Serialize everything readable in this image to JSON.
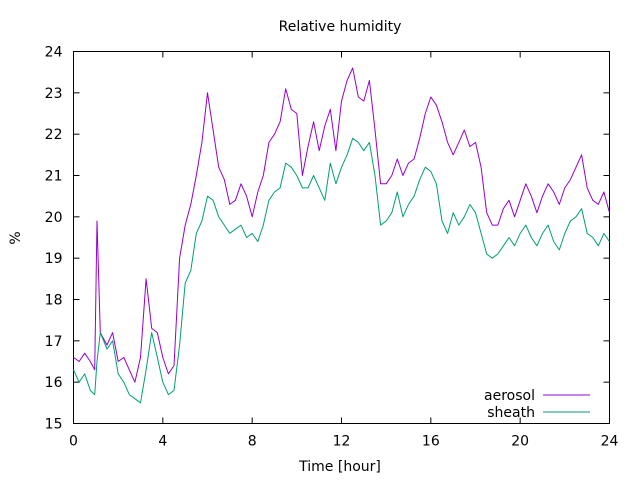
{
  "chart_data": {
    "type": "line",
    "title": "Relative humidity",
    "xlabel": "Time [hour]",
    "ylabel": "%",
    "xlim": [
      0,
      24
    ],
    "ylim": [
      15,
      24
    ],
    "xticks": [
      0,
      4,
      8,
      12,
      16,
      20,
      24
    ],
    "yticks": [
      15,
      16,
      17,
      18,
      19,
      20,
      21,
      22,
      23,
      24
    ],
    "grid": false,
    "legend_position": "bottom-right",
    "series": [
      {
        "name": "aerosol",
        "color": "#9400d3",
        "x": [
          0.0,
          0.25,
          0.5,
          0.75,
          0.95,
          1.05,
          1.2,
          1.5,
          1.75,
          2.0,
          2.25,
          2.5,
          2.75,
          3.0,
          3.25,
          3.5,
          3.75,
          4.0,
          4.25,
          4.5,
          4.75,
          5.0,
          5.25,
          5.5,
          5.75,
          6.0,
          6.25,
          6.5,
          6.75,
          7.0,
          7.25,
          7.5,
          7.75,
          8.0,
          8.25,
          8.5,
          8.75,
          9.0,
          9.25,
          9.5,
          9.75,
          10.0,
          10.25,
          10.5,
          10.75,
          11.0,
          11.25,
          11.5,
          11.75,
          12.0,
          12.25,
          12.5,
          12.75,
          13.0,
          13.25,
          13.5,
          13.75,
          14.0,
          14.25,
          14.5,
          14.75,
          15.0,
          15.25,
          15.5,
          15.75,
          16.0,
          16.25,
          16.5,
          16.75,
          17.0,
          17.25,
          17.5,
          17.75,
          18.0,
          18.25,
          18.5,
          18.75,
          19.0,
          19.25,
          19.5,
          19.75,
          20.0,
          20.25,
          20.5,
          20.75,
          21.0,
          21.25,
          21.5,
          21.75,
          22.0,
          22.25,
          22.5,
          22.75,
          23.0,
          23.25,
          23.5,
          23.75,
          24.0
        ],
        "values": [
          16.6,
          16.5,
          16.7,
          16.5,
          16.3,
          19.9,
          17.2,
          16.9,
          17.2,
          16.5,
          16.6,
          16.3,
          16.0,
          16.6,
          18.5,
          17.3,
          17.2,
          16.6,
          16.2,
          16.4,
          19.0,
          19.8,
          20.3,
          21.0,
          21.8,
          23.0,
          22.1,
          21.2,
          20.9,
          20.3,
          20.4,
          20.8,
          20.5,
          20.0,
          20.6,
          21.0,
          21.8,
          22.0,
          22.3,
          23.1,
          22.6,
          22.5,
          21.0,
          21.7,
          22.3,
          21.6,
          22.2,
          22.6,
          21.6,
          22.8,
          23.3,
          23.6,
          22.9,
          22.8,
          23.3,
          22.1,
          20.8,
          20.8,
          21.0,
          21.4,
          21.0,
          21.3,
          21.4,
          21.9,
          22.5,
          22.9,
          22.7,
          22.3,
          21.8,
          21.5,
          21.8,
          22.1,
          21.7,
          21.8,
          21.2,
          20.1,
          19.8,
          19.8,
          20.2,
          20.4,
          20.0,
          20.4,
          20.8,
          20.5,
          20.1,
          20.5,
          20.8,
          20.6,
          20.3,
          20.7,
          20.9,
          21.2,
          21.5,
          20.7,
          20.4,
          20.3,
          20.6,
          20.1
        ]
      },
      {
        "name": "sheath",
        "color": "#009e73",
        "x": [
          0.0,
          0.25,
          0.5,
          0.75,
          0.95,
          1.05,
          1.2,
          1.5,
          1.75,
          2.0,
          2.25,
          2.5,
          2.75,
          3.0,
          3.25,
          3.5,
          3.75,
          4.0,
          4.25,
          4.5,
          4.75,
          5.0,
          5.25,
          5.5,
          5.75,
          6.0,
          6.25,
          6.5,
          6.75,
          7.0,
          7.25,
          7.5,
          7.75,
          8.0,
          8.25,
          8.5,
          8.75,
          9.0,
          9.25,
          9.5,
          9.75,
          10.0,
          10.25,
          10.5,
          10.75,
          11.0,
          11.25,
          11.5,
          11.75,
          12.0,
          12.25,
          12.5,
          12.75,
          13.0,
          13.25,
          13.5,
          13.75,
          14.0,
          14.25,
          14.5,
          14.75,
          15.0,
          15.25,
          15.5,
          15.75,
          16.0,
          16.25,
          16.5,
          16.75,
          17.0,
          17.25,
          17.5,
          17.75,
          18.0,
          18.25,
          18.5,
          18.75,
          19.0,
          19.25,
          19.5,
          19.75,
          20.0,
          20.25,
          20.5,
          20.75,
          21.0,
          21.25,
          21.5,
          21.75,
          22.0,
          22.25,
          22.5,
          22.75,
          23.0,
          23.25,
          23.5,
          23.75,
          24.0
        ],
        "values": [
          16.3,
          16.0,
          16.2,
          15.8,
          15.7,
          16.5,
          17.2,
          16.8,
          17.0,
          16.2,
          16.0,
          15.7,
          15.6,
          15.5,
          16.3,
          17.2,
          16.6,
          16.0,
          15.7,
          15.8,
          16.9,
          18.4,
          18.7,
          19.6,
          19.9,
          20.5,
          20.4,
          20.0,
          19.8,
          19.6,
          19.7,
          19.8,
          19.5,
          19.6,
          19.4,
          19.8,
          20.4,
          20.6,
          20.7,
          21.3,
          21.2,
          21.0,
          20.7,
          20.7,
          21.0,
          20.7,
          20.4,
          21.3,
          20.8,
          21.2,
          21.5,
          21.9,
          21.8,
          21.6,
          21.8,
          21.0,
          19.8,
          19.9,
          20.1,
          20.6,
          20.0,
          20.3,
          20.5,
          20.9,
          21.2,
          21.1,
          20.8,
          19.9,
          19.6,
          20.1,
          19.8,
          20.0,
          20.3,
          20.1,
          19.6,
          19.1,
          19.0,
          19.1,
          19.3,
          19.5,
          19.3,
          19.6,
          19.8,
          19.5,
          19.3,
          19.6,
          19.8,
          19.4,
          19.2,
          19.6,
          19.9,
          20.0,
          20.2,
          19.6,
          19.5,
          19.3,
          19.6,
          19.4
        ]
      }
    ]
  }
}
